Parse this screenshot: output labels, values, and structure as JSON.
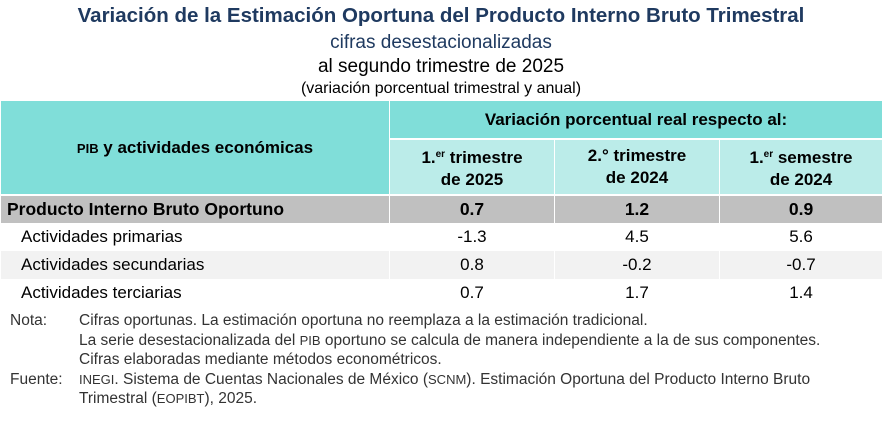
{
  "header": {
    "title": "Variación de la Estimación Oportuna del Producto Interno Bruto Trimestral",
    "subtitle1": "cifras desestacionalizadas",
    "subtitle2": "al segundo trimestre de 2025",
    "subtitle3": "(variación porcentual trimestral y anual)"
  },
  "table": {
    "col0_sc": "PIB",
    "col0_rest": " y actividades económicas",
    "group_header": "Variación porcentual real respecto al:",
    "columns": [
      {
        "a": "1.",
        "sup": "er",
        "b": " trimestre",
        "c": "de 2025"
      },
      {
        "a": "2.° trimestre",
        "sup": "",
        "b": "",
        "c": "de 2024"
      },
      {
        "a": "1.",
        "sup": "er",
        "b": " semestre",
        "c": "de 2024"
      }
    ],
    "rows": [
      {
        "label": "Producto Interno Bruto Oportuno",
        "values": [
          "0.7",
          "1.2",
          "0.9"
        ]
      },
      {
        "label": "Actividades primarias",
        "values": [
          "-1.3",
          "4.5",
          "5.6"
        ]
      },
      {
        "label": "Actividades secundarias",
        "values": [
          "0.8",
          "-0.2",
          "-0.7"
        ]
      },
      {
        "label": "Actividades terciarias",
        "values": [
          "0.7",
          "1.7",
          "1.4"
        ]
      }
    ]
  },
  "notes": {
    "nota_label": "Nota:",
    "nota1": "Cifras oportunas. La estimación oportuna no reemplaza a la estimación tradicional.",
    "nota2a": "La serie desestacionalizada del ",
    "nota2sc": "PIB",
    "nota2b": " oportuno se calcula de manera independiente a la de sus componentes.",
    "nota3": "Cifras elaboradas mediante métodos econométricos.",
    "fuente_label": "Fuente:",
    "f_sc1": "INEGI",
    "f_a": ". Sistema de Cuentas Nacionales de México (",
    "f_sc2": "SCNM",
    "f_b": "). Estimación Oportuna del Producto Interno Bruto Trimestral (",
    "f_sc3": "EOPIBT",
    "f_c": "), 2025."
  },
  "colors": {
    "header": "#80ded9",
    "subheader": "#bbece9",
    "total_row": "#c0c0c0",
    "alt_row": "#f2f2f2",
    "title": "#1f3a60"
  }
}
